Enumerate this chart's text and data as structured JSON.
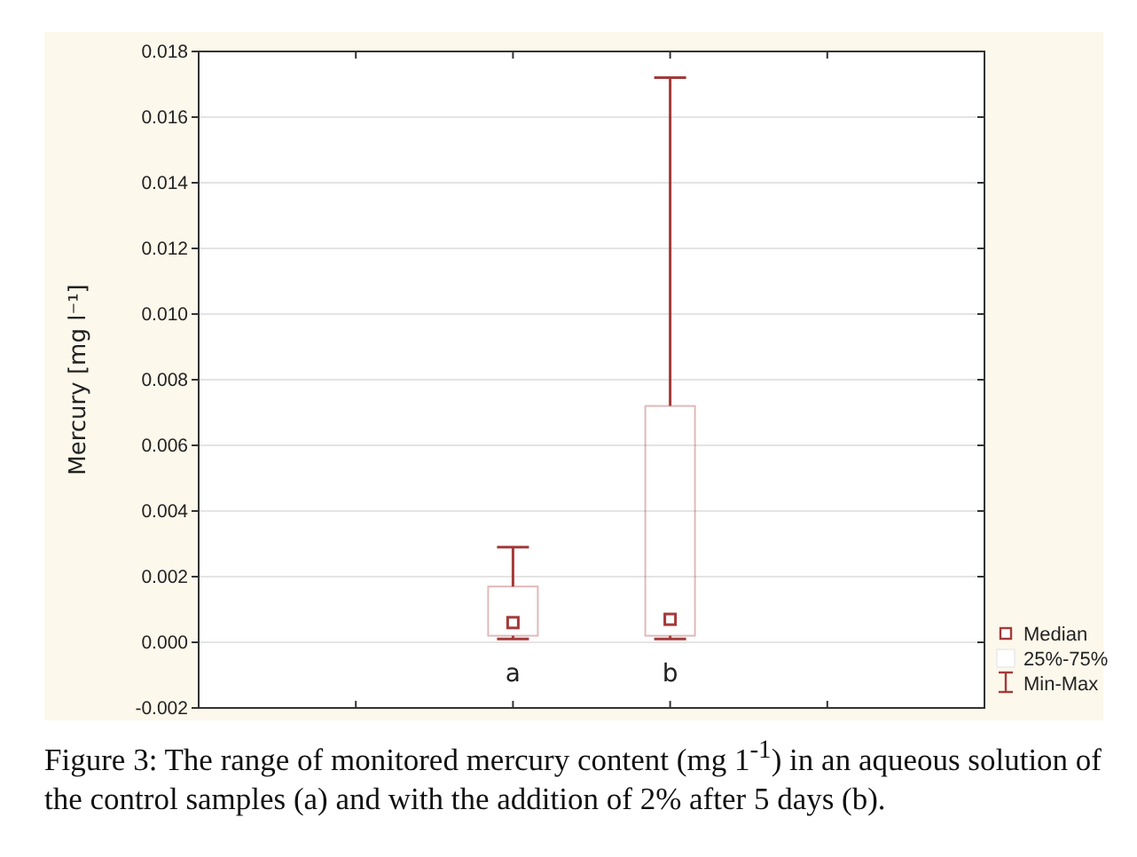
{
  "chart_data": {
    "type": "box",
    "ylabel": "Mercury [mg l⁻¹]",
    "categories": [
      "a",
      "b"
    ],
    "series": [
      {
        "color": "#a33a3a",
        "boxes": [
          {
            "low": 0.0001,
            "q1": 0.0002,
            "median": 0.0006,
            "q3": 0.0017,
            "high": 0.0029
          },
          {
            "low": 0.0001,
            "q1": 0.0002,
            "median": 0.0007,
            "q3": 0.0072,
            "high": 0.0172
          }
        ]
      }
    ],
    "ylim": [
      -0.002,
      0.018
    ],
    "yticks": [
      -0.002,
      {
        "value": 0,
        "label": "0.000"
      },
      0.002,
      0.004,
      0.006,
      0.008,
      {
        "value": 0.01,
        "label": "0.010"
      },
      0.012,
      0.014,
      0.016,
      0.018
    ],
    "grid": "y",
    "annotations": [
      "Median",
      "25%-75%",
      "Min-Max",
      "Figure 3: The range of monitored mercury content (mg 1$^{-1}$) in an aqueous solution of the control samples (a) and with the addition of 2% after 5 days (b)."
    ]
  }
}
